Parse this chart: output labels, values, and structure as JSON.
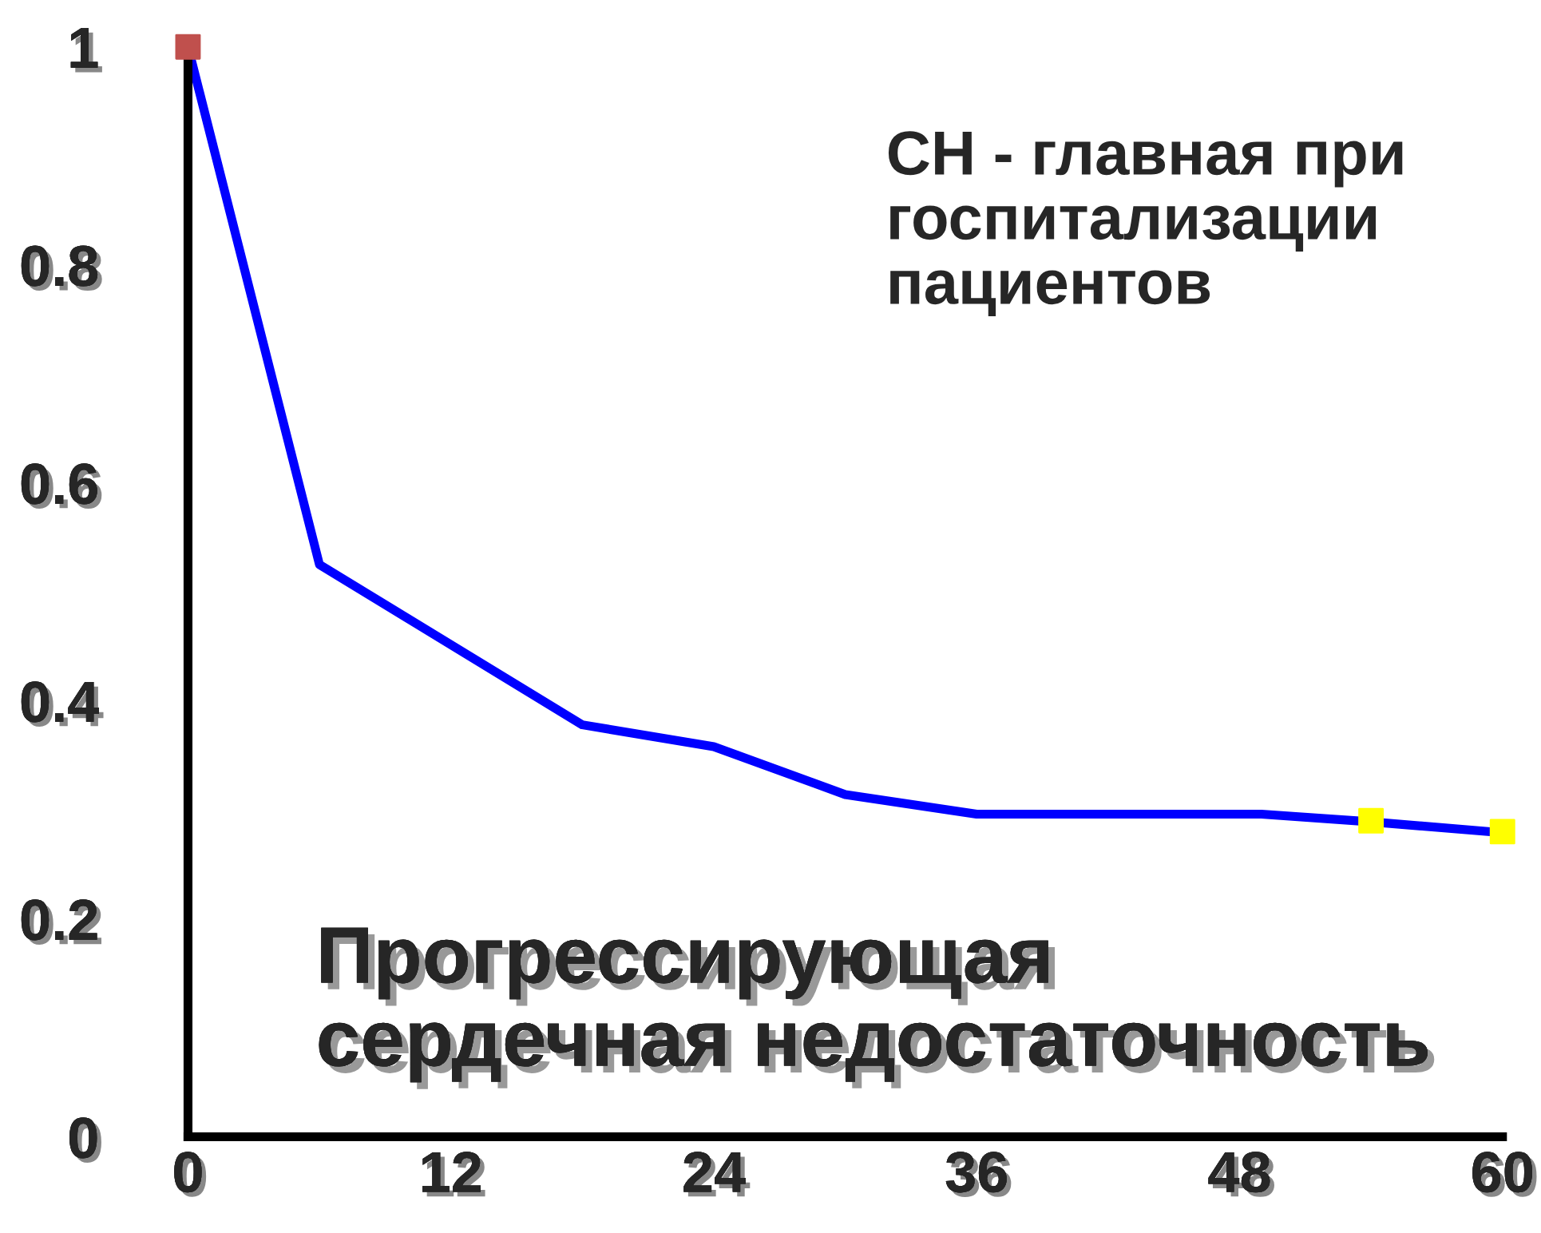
{
  "chart_data": {
    "type": "line",
    "x": [
      0,
      6,
      18,
      24,
      30,
      36,
      49,
      54,
      60
    ],
    "series": [
      {
        "color": "#0000ff",
        "values": [
          1,
          0.525,
          0.378,
          0.358,
          0.314,
          0.296,
          0.296,
          0.289,
          0.279
        ]
      },
      {
        "type": "scatter",
        "color": "#c0504d",
        "x": [
          0
        ],
        "values": [
          1
        ],
        "marker": "square"
      },
      {
        "type": "scatter",
        "color": "#ffff00",
        "x": [
          54,
          60
        ],
        "values": [
          0.29,
          0.28
        ],
        "marker": "square"
      }
    ],
    "xlim": [
      0,
      60
    ],
    "xticks": [
      0,
      12,
      24,
      36,
      48,
      60
    ],
    "ylim": [
      0,
      1
    ],
    "yticks": [
      0,
      0.2,
      0.4,
      0.6,
      0.8,
      1
    ],
    "grid": false,
    "legend": false,
    "marker": "none",
    "line_style": "solid",
    "annotations": [
      "СН - главная при\nгоспитализации\nпациентов",
      "Прогрессирующая\nсердечная недостаточность"
    ]
  }
}
